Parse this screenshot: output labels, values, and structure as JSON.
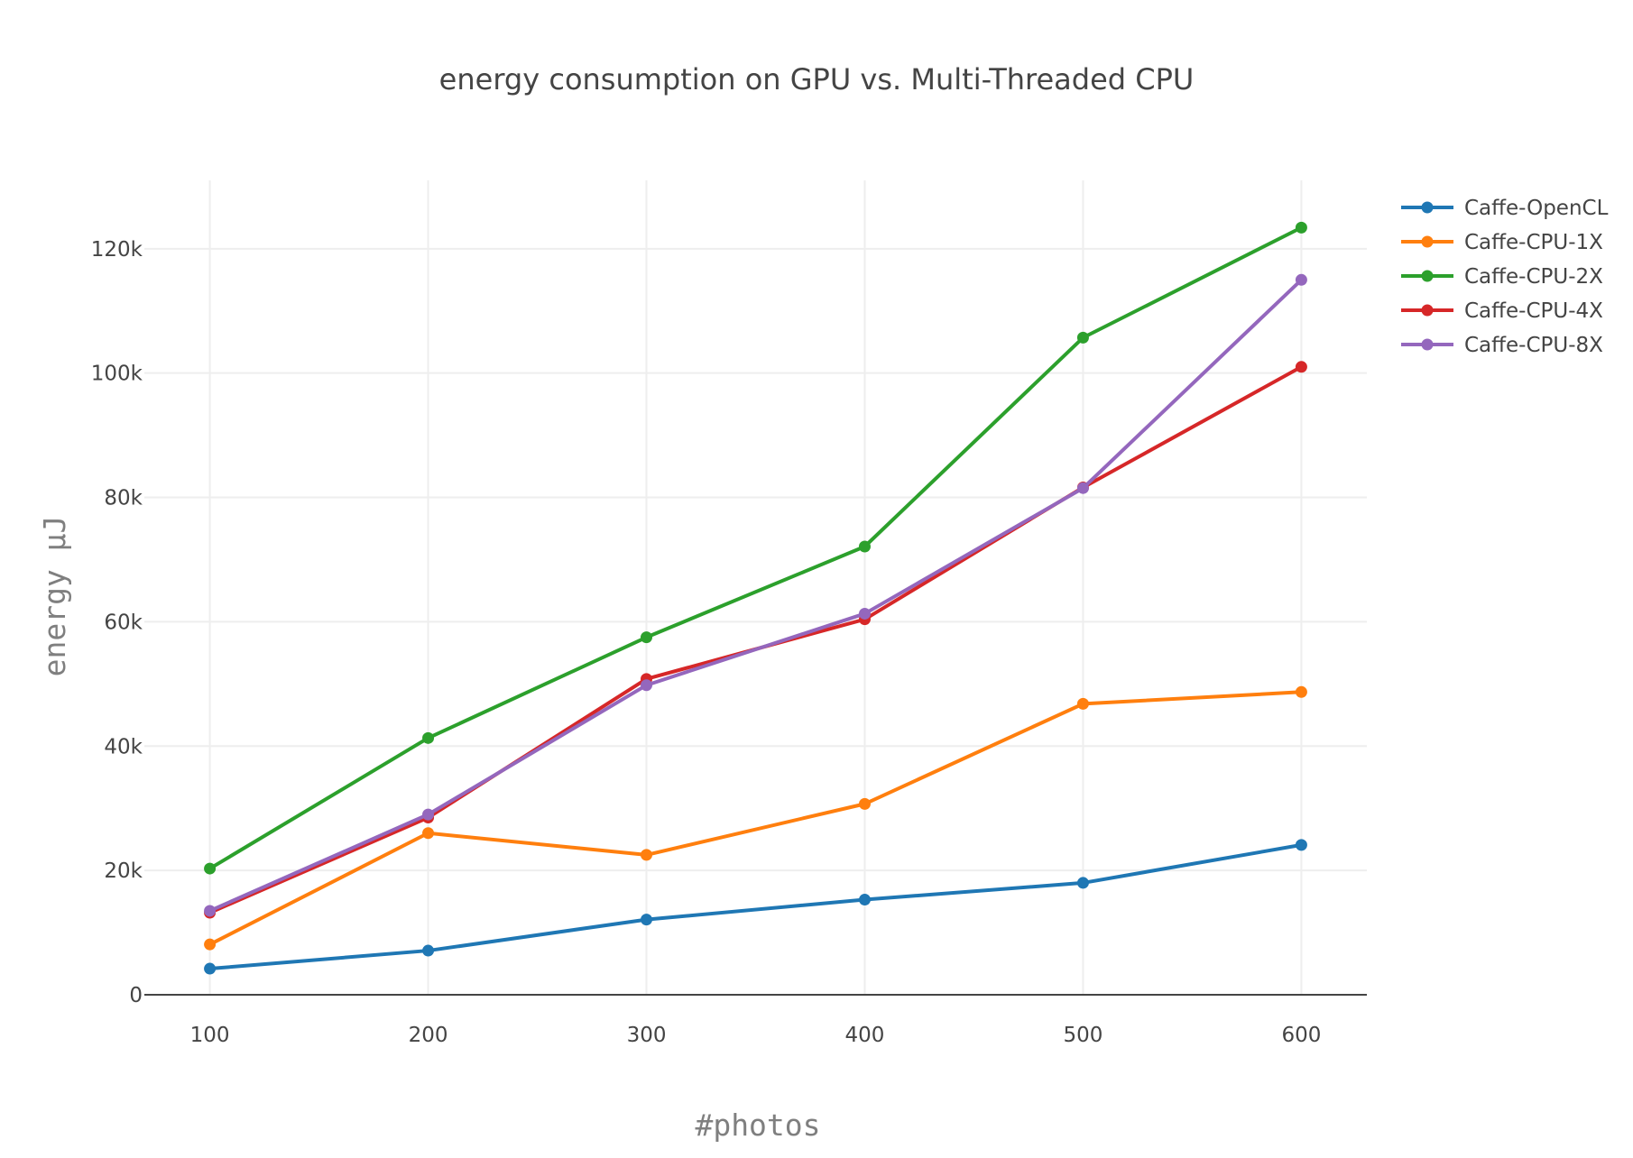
{
  "chart_data": {
    "type": "line",
    "title": "energy consumption on GPU vs. Multi-Threaded CPU",
    "xlabel": "#photos",
    "ylabel": "energy µJ",
    "x": [
      100,
      200,
      300,
      400,
      500,
      600
    ],
    "xlim": [
      70,
      630
    ],
    "ylim": [
      0,
      131000
    ],
    "yticks": [
      0,
      20000,
      40000,
      60000,
      80000,
      100000,
      120000
    ],
    "ytick_labels": [
      "0",
      "20k",
      "40k",
      "60k",
      "80k",
      "100k",
      "120k"
    ],
    "xtick_labels": [
      "100",
      "200",
      "300",
      "400",
      "500",
      "600"
    ],
    "grid": true,
    "legend_position": "top-right",
    "series": [
      {
        "name": "Caffe-OpenCL",
        "color": "#1f77b4",
        "values": [
          4200,
          7100,
          12100,
          15300,
          18000,
          24100
        ]
      },
      {
        "name": "Caffe-CPU-1X",
        "color": "#ff7f0e",
        "values": [
          8100,
          26000,
          22500,
          30700,
          46800,
          48700
        ]
      },
      {
        "name": "Caffe-CPU-2X",
        "color": "#2ca02c",
        "values": [
          20300,
          41300,
          57500,
          72100,
          105700,
          123400
        ]
      },
      {
        "name": "Caffe-CPU-4X",
        "color": "#d62728",
        "values": [
          13200,
          28500,
          50800,
          60400,
          81600,
          101000
        ]
      },
      {
        "name": "Caffe-CPU-8X",
        "color": "#9467bd",
        "values": [
          13500,
          29000,
          49800,
          61300,
          81500,
          115000
        ]
      }
    ]
  }
}
